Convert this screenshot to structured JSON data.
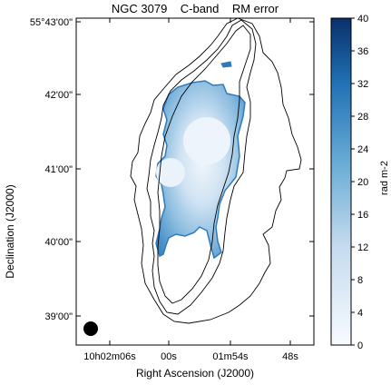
{
  "figure": {
    "title": "NGC 3079    C-band    RM error",
    "xlabel": "Right Ascension (J2000)",
    "ylabel": "Declination (J2000)",
    "colorbar_label": "rad m-2"
  },
  "axes": {
    "x_ticks": [
      "10h02m06s",
      "00s",
      "01m54s",
      "48s"
    ],
    "y_ticks": [
      "55°43'00\"",
      "42'00\"",
      "41'00\"",
      "40'00\"",
      "39'00\""
    ]
  },
  "colorbar": {
    "ticks": [
      "40",
      "36",
      "32",
      "28",
      "24",
      "20",
      "16",
      "12",
      "8",
      "4",
      "0"
    ],
    "range": [
      0,
      40
    ],
    "colormap": [
      "#f7fbff",
      "#c6dbef",
      "#6baed6",
      "#2171b5",
      "#08306b"
    ]
  },
  "beam": {
    "color": "#000000"
  }
}
